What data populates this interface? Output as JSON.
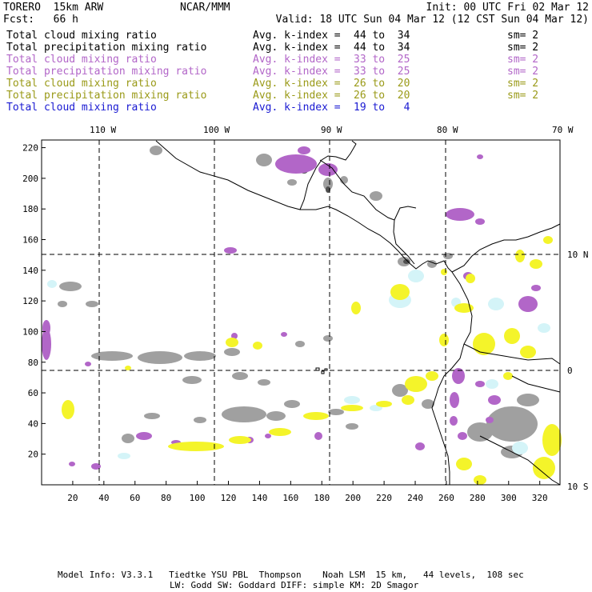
{
  "header": {
    "model": "TORERO  15km ARW",
    "center": "NCAR/MMM",
    "init": "Init: 00 UTC Fri 02 Mar 12",
    "fcst": "Fcst:   66 h",
    "valid": "Valid: 18 UTC Sun 04 Mar 12 (12 CST Sun 04 Mar 12)"
  },
  "fields": [
    {
      "name": "Total cloud mixing ratio",
      "kindex_label": "Avg. k-index =",
      "range": "44 to  34",
      "sm": "sm= 2",
      "color": "#000000"
    },
    {
      "name": "Total precipitation mixing ratio",
      "kindex_label": "Avg. k-index =",
      "range": "44 to  34",
      "sm": "sm= 2",
      "color": "#000000"
    },
    {
      "name": "Total cloud mixing ratio",
      "kindex_label": "Avg. k-index =",
      "range": "33 to  25",
      "sm": "sm= 2",
      "color": "#b266c8"
    },
    {
      "name": "Total precipitation mixing ratio",
      "kindex_label": "Avg. k-index =",
      "range": "33 to  25",
      "sm": "sm= 2",
      "color": "#b266c8"
    },
    {
      "name": "Total cloud mixing ratio",
      "kindex_label": "Avg. k-index =",
      "range": "26 to  20",
      "sm": "sm= 2",
      "color": "#9a9a18"
    },
    {
      "name": "Total precipitation mixing ratio",
      "kindex_label": "Avg. k-index =",
      "range": "26 to  20",
      "sm": "sm= 2",
      "color": "#9a9a18"
    },
    {
      "name": "Total cloud mixing ratio",
      "kindex_label": "Avg. k-index =",
      "range": "19 to   4",
      "sm": "",
      "color": "#1a1ad2"
    }
  ],
  "map": {
    "top_lon_labels": [
      "110 W",
      "100 W",
      "90 W",
      "80 W",
      "70 W"
    ],
    "right_lat_labels": [
      "10 N",
      "0",
      "10 S"
    ],
    "x_ticks": [
      "20",
      "40",
      "60",
      "80",
      "100",
      "120",
      "140",
      "160",
      "180",
      "200",
      "220",
      "240",
      "260",
      "280",
      "300",
      "320"
    ],
    "y_ticks": [
      "20",
      "40",
      "60",
      "80",
      "100",
      "120",
      "140",
      "160",
      "180",
      "200",
      "220"
    ],
    "colors": {
      "gray": "#a0a0a0",
      "purple": "#b266c8",
      "yellow": "#f4f42a",
      "cyan": "#d4f4f8"
    }
  },
  "footer": {
    "line1": "Model Info: V3.3.1   Tiedtke YSU PBL  Thompson    Noah LSM  15 km,   44 levels,  108 sec",
    "line2": "LW: Godd SW: Goddard DIFF: simple KM: 2D Smagor"
  }
}
